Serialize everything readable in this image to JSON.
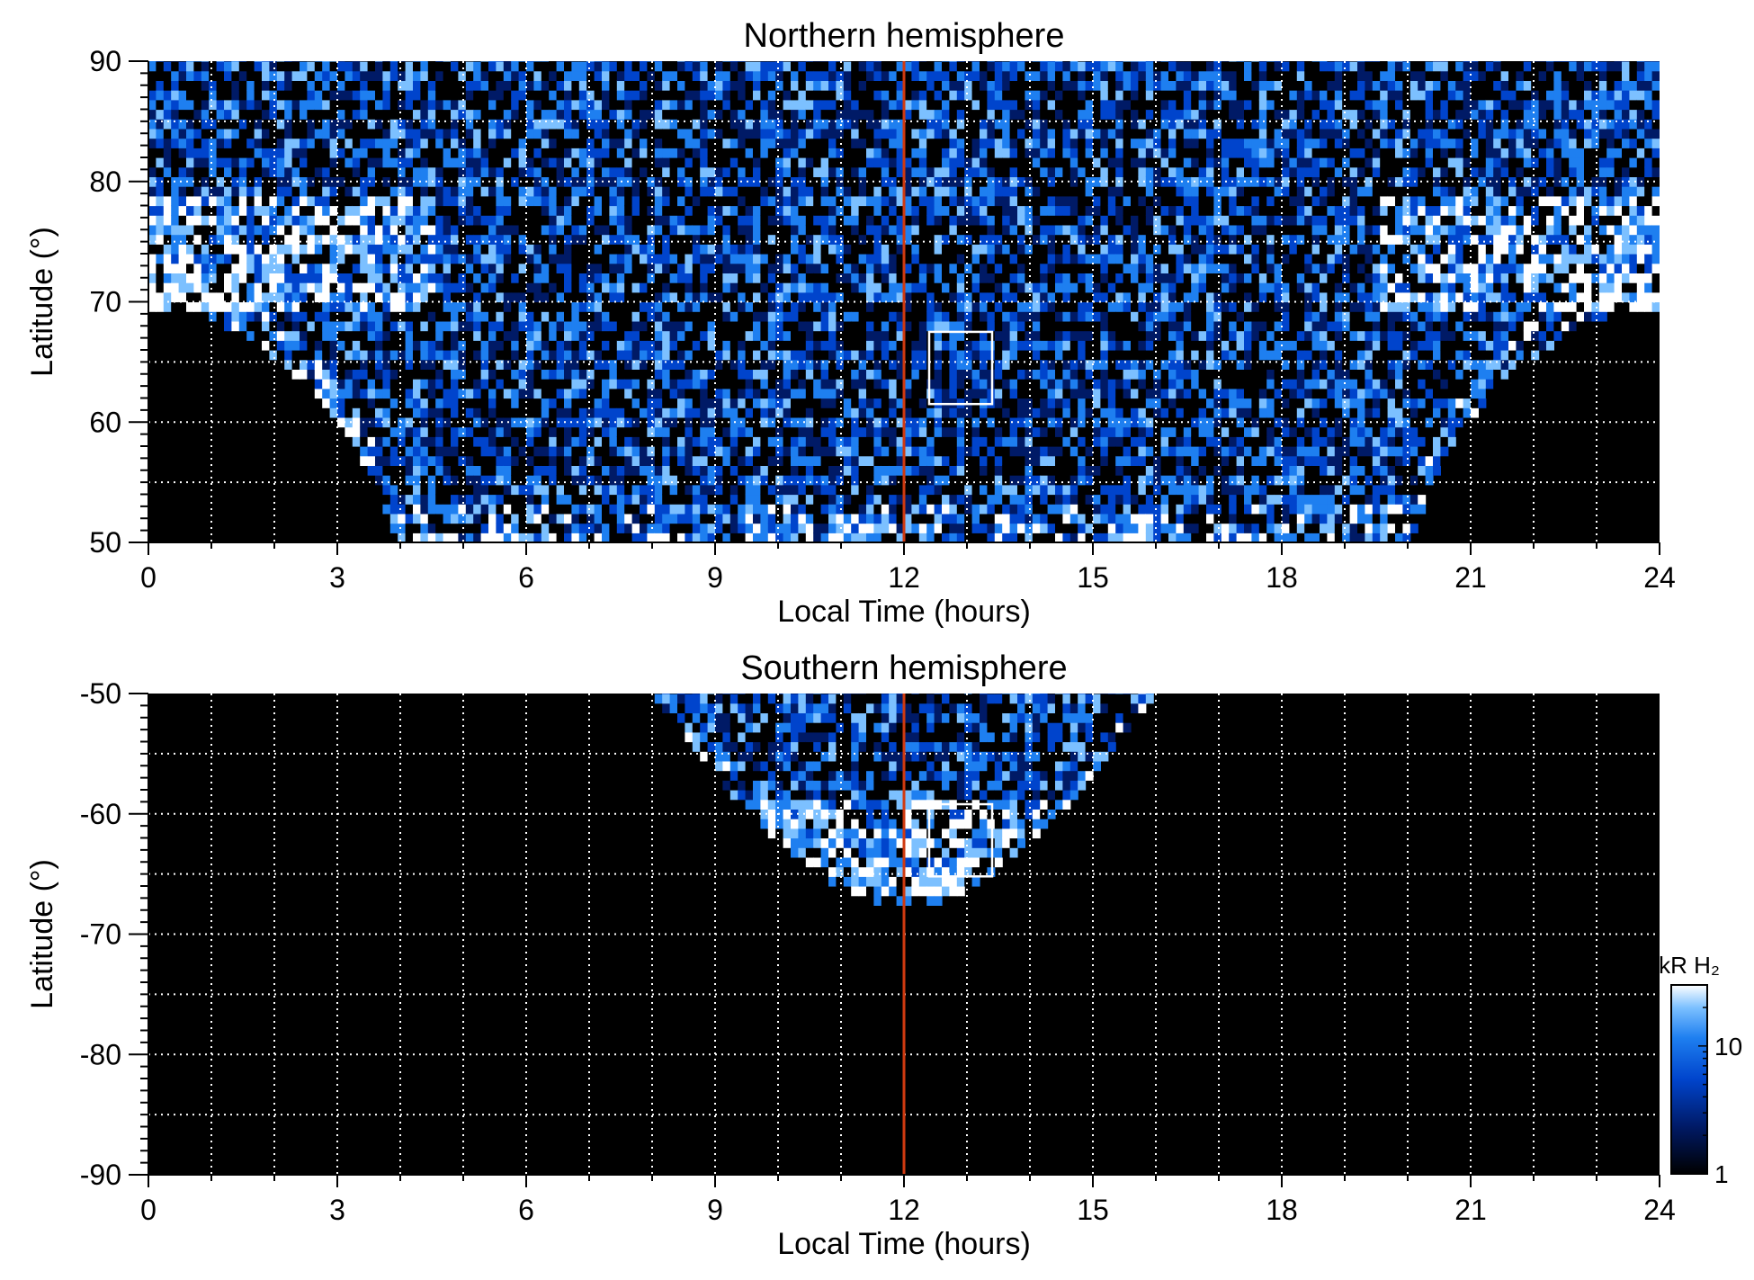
{
  "chart_data": [
    {
      "type": "heatmap",
      "title": "Northern hemisphere",
      "xlabel": "Local Time (hours)",
      "ylabel": "Latitude (°)",
      "xlim": [
        0,
        24
      ],
      "ylim": [
        50,
        90
      ],
      "x_ticks": [
        0,
        3,
        6,
        9,
        12,
        15,
        18,
        21,
        24
      ],
      "y_ticks": [
        50,
        60,
        70,
        80,
        90
      ],
      "x_tick_labels": [
        "0",
        "3",
        "6",
        "9",
        "12",
        "15",
        "18",
        "21",
        "24"
      ],
      "y_tick_labels": [
        "50",
        "60",
        "70",
        "80",
        "90"
      ],
      "grid_x_step": 1,
      "grid_y_step": 5,
      "grid": true,
      "reference_line": {
        "x": 12,
        "color": "#d03a10"
      },
      "highlight_box": {
        "x": [
          12.4,
          13.4
        ],
        "y": [
          61.5,
          67.5
        ],
        "color": "#ffffff"
      },
      "coverage_boundary": {
        "description": "observed region edge",
        "lt": [
          0,
          0.5,
          1,
          1.5,
          2,
          2.5,
          3,
          3.5,
          4,
          12,
          20,
          20.5,
          21,
          21.5,
          22,
          22.5,
          23,
          23.5,
          24
        ],
        "lat": [
          69.5,
          69.3,
          68.6,
          67.2,
          65.5,
          63.2,
          60.2,
          56.0,
          50.0,
          50.0,
          50.0,
          56.0,
          60.2,
          63.2,
          65.5,
          67.2,
          68.6,
          69.3,
          69.5
        ]
      },
      "bright_oval": {
        "peak_lat_dawn": 74,
        "peak_lat_dusk": 74,
        "lt_dawn": [
          0,
          4.5
        ],
        "lt_dusk": [
          19.5,
          24
        ]
      }
    },
    {
      "type": "heatmap",
      "title": "Southern hemisphere",
      "xlabel": "Local Time (hours)",
      "ylabel": "Latitude (°)",
      "xlim": [
        0,
        24
      ],
      "ylim": [
        -90,
        -50
      ],
      "x_ticks": [
        0,
        3,
        6,
        9,
        12,
        15,
        18,
        21,
        24
      ],
      "y_ticks": [
        -90,
        -80,
        -70,
        -60,
        -50
      ],
      "x_tick_labels": [
        "0",
        "3",
        "6",
        "9",
        "12",
        "15",
        "18",
        "21",
        "24"
      ],
      "y_tick_labels": [
        "-90",
        "-80",
        "-70",
        "-60",
        "-50"
      ],
      "grid_x_step": 1,
      "grid_y_step": 5,
      "grid": true,
      "reference_line": {
        "x": 12,
        "color": "#d03a10"
      },
      "highlight_box": {
        "x": [
          12.4,
          13.4
        ],
        "y": [
          -65.2,
          -59.2
        ],
        "color": "#ffffff"
      },
      "coverage_boundary": {
        "description": "observed region edge",
        "lt": [
          8,
          8.5,
          9,
          9.5,
          10,
          10.5,
          11,
          11.5,
          12,
          12.5,
          13,
          13.5,
          14,
          14.5,
          15,
          15.5,
          16
        ],
        "lat": [
          -50.0,
          -53.5,
          -56.8,
          -59.7,
          -62.3,
          -64.4,
          -66.2,
          -67.5,
          -68.0,
          -67.5,
          -66.2,
          -64.4,
          -62.3,
          -59.7,
          -56.8,
          -53.5,
          -50.0
        ]
      },
      "bright_oval": {
        "peak_lat": -63
      }
    }
  ],
  "colorbar": {
    "label": "kR H₂",
    "scale": "log",
    "range": [
      1,
      30
    ],
    "ticks": [
      1,
      10
    ],
    "tick_labels": [
      "1",
      "10"
    ],
    "colors": [
      "#000000",
      "#001a66",
      "#0044cc",
      "#1e7ff0",
      "#7cc0ff",
      "#ffffff"
    ]
  }
}
